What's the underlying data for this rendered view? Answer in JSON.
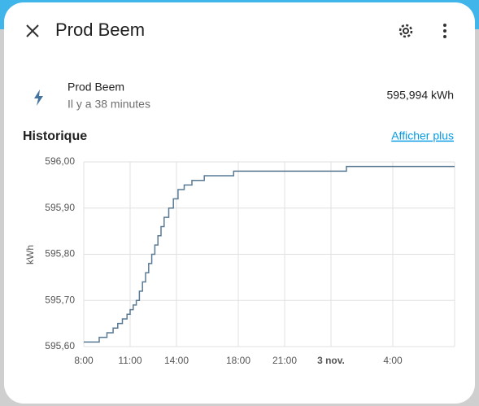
{
  "header": {
    "title": "Prod Beem"
  },
  "entity": {
    "name": "Prod Beem",
    "last_changed": "Il y a 38 minutes",
    "state": "595,994 kWh"
  },
  "history": {
    "title": "Historique",
    "more_link": "Afficher plus"
  },
  "chart_data": {
    "type": "line",
    "step": "after",
    "y_label": "kWh",
    "grid": true,
    "x": [
      8,
      9,
      9.5,
      9.9,
      10.2,
      10.5,
      10.8,
      11,
      11.2,
      11.4,
      11.6,
      11.8,
      12,
      12.2,
      12.4,
      12.6,
      12.8,
      13,
      13.2,
      13.5,
      13.8,
      14.1,
      14.5,
      15,
      15.8,
      17.7,
      25,
      32
    ],
    "series": [
      {
        "name": "Prod Beem",
        "color": "#5a7a94",
        "values": [
          595.61,
          595.62,
          595.63,
          595.64,
          595.65,
          595.66,
          595.67,
          595.68,
          595.69,
          595.7,
          595.72,
          595.74,
          595.76,
          595.78,
          595.8,
          595.82,
          595.84,
          595.86,
          595.88,
          595.9,
          595.92,
          595.94,
          595.95,
          595.96,
          595.97,
          595.98,
          595.99,
          595.99
        ]
      }
    ],
    "xlim": [
      8,
      32
    ],
    "xticks": [
      {
        "value": 8,
        "label": "8:00"
      },
      {
        "value": 11,
        "label": "11:00"
      },
      {
        "value": 14,
        "label": "14:00"
      },
      {
        "value": 18,
        "label": "18:00"
      },
      {
        "value": 21,
        "label": "21:00"
      },
      {
        "value": 24,
        "label": "3 nov."
      },
      {
        "value": 28,
        "label": "4:00"
      }
    ],
    "ylim": [
      595.6,
      596
    ],
    "yticks": [
      {
        "value": 595.6,
        "label": "595,60"
      },
      {
        "value": 595.7,
        "label": "595,70"
      },
      {
        "value": 595.8,
        "label": "595,80"
      },
      {
        "value": 595.9,
        "label": "595,90"
      },
      {
        "value": 596,
        "label": "596,00"
      }
    ]
  }
}
